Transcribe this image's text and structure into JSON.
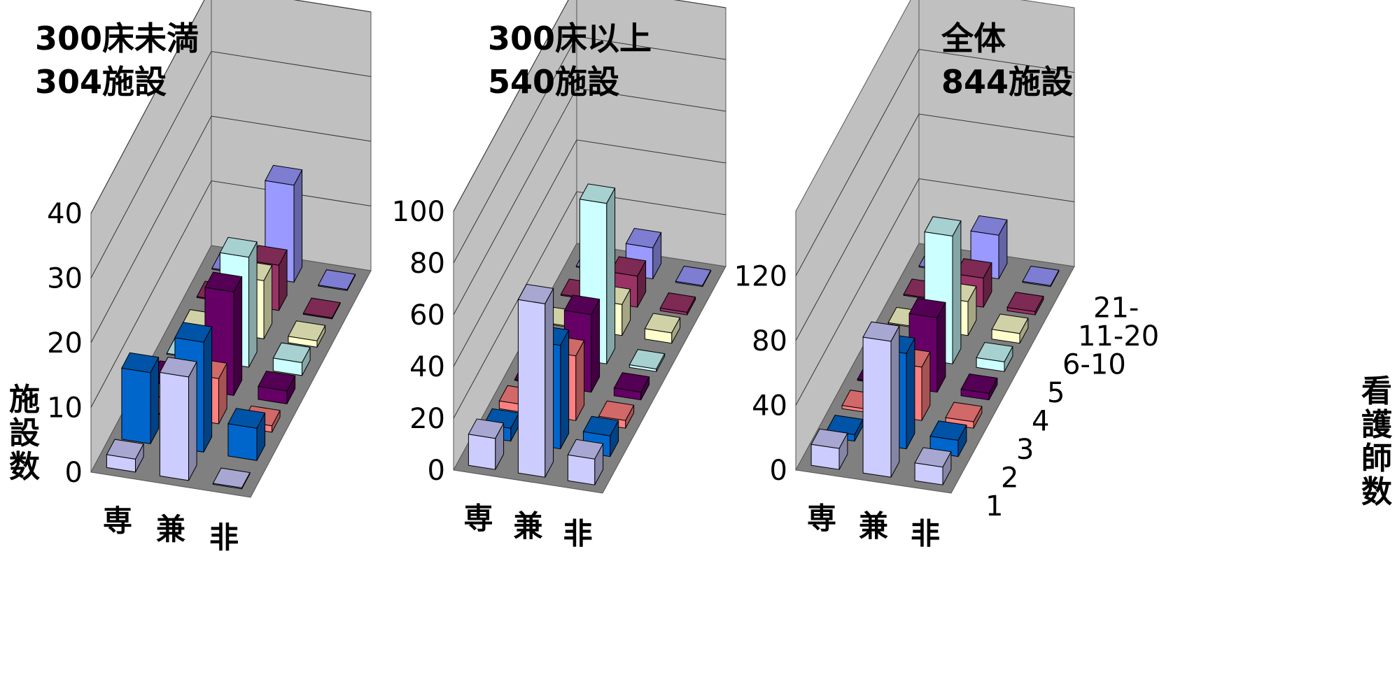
{
  "chart_data": [
    {
      "type": "bar3d",
      "title_lines": [
        "300床未満",
        "304施設"
      ],
      "ylabel": "施設数",
      "zlabel": "看護師数",
      "ylim": [
        0,
        40
      ],
      "yticks": [
        0,
        10,
        20,
        30,
        40
      ],
      "categories_x": [
        "専",
        "兼",
        "非"
      ],
      "categories_z": [
        "1",
        "2",
        "3",
        "4",
        "5",
        "6-10",
        "11-20",
        "21-"
      ],
      "values": [
        [
          2,
          11,
          0,
          1,
          0,
          0,
          0,
          0
        ],
        [
          16,
          17,
          7,
          16,
          17,
          9,
          7,
          15
        ],
        [
          0,
          5,
          1,
          2,
          2,
          1,
          0,
          0
        ]
      ]
    },
    {
      "type": "bar3d",
      "title_lines": [
        "300床以上",
        "540施設"
      ],
      "ylabel": "施設数",
      "zlabel": "看護師数",
      "ylim": [
        0,
        100
      ],
      "yticks": [
        0,
        20,
        40,
        60,
        80,
        100
      ],
      "categories_x": [
        "専",
        "兼",
        "非"
      ],
      "categories_z": [
        "1",
        "2",
        "3",
        "4",
        "5",
        "6-10",
        "11-20",
        "21-"
      ],
      "values": [
        [
          12,
          5,
          3,
          0,
          0,
          0,
          0,
          0
        ],
        [
          67,
          40,
          25,
          30,
          62,
          12,
          12,
          12
        ],
        [
          10,
          8,
          3,
          3,
          1,
          4,
          1,
          0
        ]
      ]
    },
    {
      "type": "bar3d",
      "title_lines": [
        "全体",
        "844施設"
      ],
      "ylabel": "施設数",
      "zlabel": "看護師数",
      "ylim": [
        0,
        160
      ],
      "yticks": [
        0,
        40,
        80,
        120
      ],
      "categories_x": [
        "専",
        "兼",
        "非"
      ],
      "categories_z": [
        "1",
        "2",
        "3",
        "4",
        "5",
        "6-10",
        "11-20",
        "21-"
      ],
      "values": [
        [
          13,
          4,
          2,
          0,
          0,
          0,
          0,
          0
        ],
        [
          84,
          59,
          33,
          46,
          79,
          21,
          18,
          27
        ],
        [
          11,
          10,
          4,
          4,
          6,
          6,
          2,
          0
        ]
      ]
    }
  ],
  "colors": {
    "series": [
      "#ccccff",
      "#0066cc",
      "#ff8080",
      "#660066",
      "#ccffff",
      "#ffffcc",
      "#993366",
      "#9999ff"
    ],
    "floor": "#808080",
    "walls": "#c0c0c0",
    "grid": "#000000"
  }
}
